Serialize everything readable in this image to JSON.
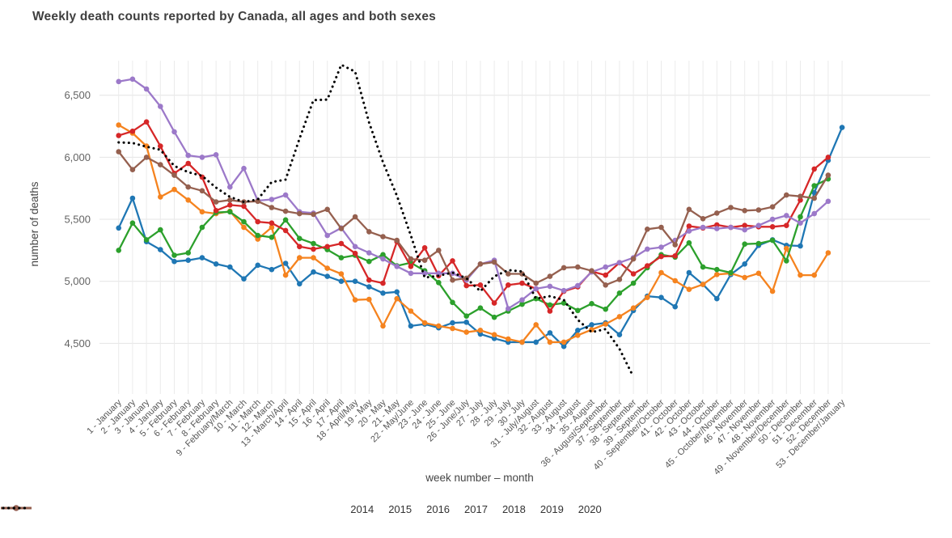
{
  "title": "Weekly death counts reported by Canada, all ages and both sexes",
  "chart_data": {
    "type": "line",
    "title": "Weekly death counts reported by Canada, all ages and both sexes",
    "xlabel": "week number – month",
    "ylabel": "number of deaths",
    "ylim": [
      4150,
      6800
    ],
    "yticks": [
      4500,
      5000,
      5500,
      6000,
      6500
    ],
    "ytick_labels": [
      "4,500",
      "5,000",
      "5,500",
      "6,000",
      "6,500"
    ],
    "grid": true,
    "legend_position": "bottom-center",
    "categories": [
      "1 - January",
      "2 - January",
      "3 - January",
      "4 - January",
      "5 - February",
      "6 - February",
      "7 - February",
      "8 - February",
      "9 - February/March",
      "10 - March",
      "11 - March",
      "12 - March",
      "13 - March/April",
      "14 - April",
      "15 - April",
      "16 - April",
      "17 - April",
      "18 - April/May",
      "19 - May",
      "20 - May",
      "21 - May",
      "22 - May/June",
      "23 - June",
      "24 - June",
      "25 - June",
      "26 - June/July",
      "27 - July",
      "28 - July",
      "29 - July",
      "30 - July",
      "31 - July/August",
      "32 - August",
      "33 - August",
      "34 - August",
      "35 - August",
      "36 - August/September",
      "37 - September",
      "38 - September",
      "39 - September",
      "40 - September/October",
      "41 - October",
      "42 - October",
      "43 - October",
      "44 - October",
      "45 - October/November",
      "46 - November",
      "47 - November",
      "48 - November",
      "49 - November/December",
      "50 - December",
      "51 - December",
      "52 - December",
      "53 - December/January"
    ],
    "series": [
      {
        "name": "2014",
        "color": "#1f77b4",
        "style": "solid",
        "marker": true,
        "values": [
          5430,
          5670,
          5320,
          5255,
          5160,
          5170,
          5190,
          5140,
          5115,
          5020,
          5130,
          5095,
          5145,
          4980,
          5075,
          5040,
          5000,
          5000,
          4955,
          4905,
          4915,
          4640,
          4655,
          4625,
          4665,
          4670,
          4575,
          4540,
          4510,
          4510,
          4510,
          4585,
          4475,
          4605,
          4650,
          4665,
          4570,
          4765,
          4880,
          4870,
          4795,
          5070,
          4975,
          4860,
          5055,
          5140,
          5290,
          5335,
          5290,
          5285,
          5715,
          5975,
          6240
        ]
      },
      {
        "name": "2015",
        "color": "#f5831f",
        "style": "solid",
        "marker": true,
        "values": [
          6260,
          6195,
          6090,
          5680,
          5740,
          5655,
          5560,
          5545,
          5565,
          5435,
          5340,
          5435,
          5050,
          5190,
          5190,
          5105,
          5060,
          4850,
          4855,
          4640,
          4860,
          4760,
          4665,
          4640,
          4620,
          4590,
          4605,
          4570,
          4535,
          4510,
          4650,
          4510,
          4510,
          4565,
          4610,
          4655,
          4715,
          4785,
          4870,
          5070,
          5005,
          4935,
          4975,
          5055,
          5065,
          5030,
          5065,
          4920,
          5265,
          5050,
          5050,
          5230
        ]
      },
      {
        "name": "2016",
        "color": "#2ca02c",
        "style": "solid",
        "marker": true,
        "values": [
          5250,
          5470,
          5335,
          5415,
          5210,
          5230,
          5435,
          5555,
          5560,
          5480,
          5370,
          5355,
          5495,
          5345,
          5305,
          5255,
          5190,
          5210,
          5160,
          5215,
          5125,
          5150,
          5085,
          4990,
          4830,
          4720,
          4785,
          4710,
          4760,
          4815,
          4860,
          4810,
          4825,
          4765,
          4820,
          4775,
          4905,
          4985,
          5110,
          5215,
          5195,
          5310,
          5115,
          5095,
          5070,
          5300,
          5305,
          5330,
          5165,
          5520,
          5770,
          5825
        ]
      },
      {
        "name": "2017",
        "color": "#d62728",
        "style": "solid",
        "marker": true,
        "values": [
          6175,
          6210,
          6285,
          6090,
          5870,
          5950,
          5840,
          5570,
          5615,
          5605,
          5480,
          5470,
          5410,
          5280,
          5260,
          5280,
          5305,
          5225,
          5010,
          4985,
          5320,
          5120,
          5270,
          5045,
          5165,
          4965,
          4970,
          4825,
          4970,
          4985,
          4940,
          4760,
          4920,
          4955,
          5080,
          5050,
          5150,
          5060,
          5125,
          5200,
          5205,
          5445,
          5430,
          5455,
          5435,
          5450,
          5440,
          5440,
          5450,
          5655,
          5905,
          6000
        ]
      },
      {
        "name": "2018",
        "color": "#9c79c9",
        "style": "solid",
        "marker": true,
        "values": [
          6610,
          6630,
          6550,
          6410,
          6205,
          6015,
          6000,
          6020,
          5760,
          5910,
          5650,
          5660,
          5695,
          5560,
          5550,
          5370,
          5430,
          5280,
          5230,
          5180,
          5120,
          5065,
          5065,
          5065,
          5065,
          5010,
          5140,
          5170,
          4780,
          4850,
          4940,
          4960,
          4925,
          4965,
          5075,
          5115,
          5150,
          5190,
          5260,
          5275,
          5330,
          5405,
          5435,
          5425,
          5435,
          5415,
          5450,
          5500,
          5530,
          5470,
          5545,
          5645
        ]
      },
      {
        "name": "2019",
        "color": "#95604f",
        "style": "solid",
        "marker": true,
        "values": [
          6045,
          5900,
          6000,
          5940,
          5855,
          5760,
          5730,
          5640,
          5655,
          5640,
          5645,
          5595,
          5565,
          5545,
          5540,
          5580,
          5425,
          5520,
          5400,
          5360,
          5330,
          5180,
          5170,
          5250,
          5010,
          5025,
          5140,
          5155,
          5060,
          5060,
          4985,
          5040,
          5110,
          5115,
          5085,
          4970,
          5015,
          5180,
          5420,
          5435,
          5295,
          5580,
          5505,
          5550,
          5595,
          5570,
          5575,
          5600,
          5695,
          5685,
          5670,
          5855
        ]
      },
      {
        "name": "2020",
        "color": "#000000",
        "style": "dotted",
        "marker": false,
        "values": [
          6120,
          6115,
          6085,
          6060,
          5930,
          5880,
          5850,
          5755,
          5680,
          5640,
          5660,
          5800,
          5820,
          6150,
          6460,
          6465,
          6745,
          6690,
          6280,
          5960,
          5690,
          5370,
          5030,
          5045,
          5070,
          5025,
          4920,
          5040,
          5090,
          5080,
          4860,
          4880,
          4850,
          4690,
          4590,
          4615,
          4455,
          4230
        ]
      }
    ]
  }
}
